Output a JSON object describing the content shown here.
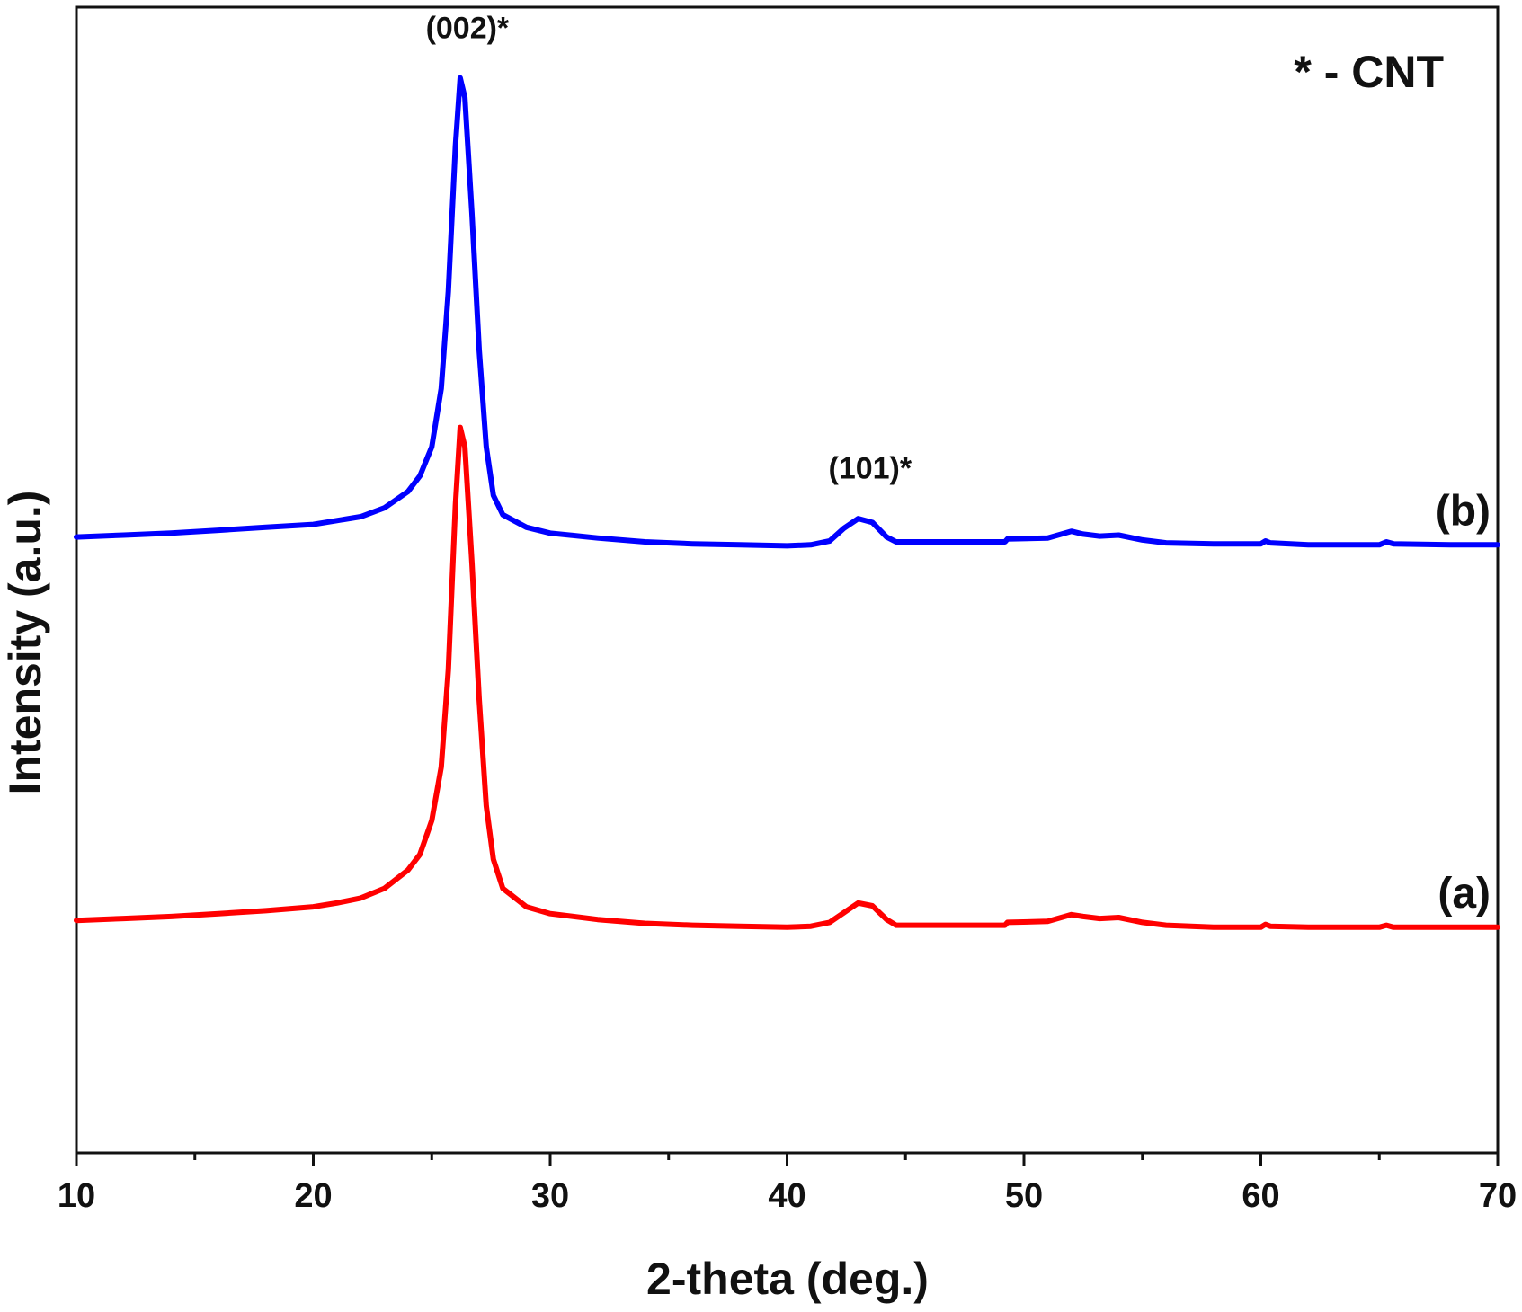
{
  "chart_data": {
    "type": "line",
    "xlabel": "2-theta (deg.)",
    "ylabel": "Intensity (a.u.)",
    "xlim": [
      10,
      70
    ],
    "ylim": [
      0,
      1
    ],
    "x_ticks": [
      10,
      20,
      30,
      40,
      50,
      60,
      70
    ],
    "y_ticks": [],
    "grid": false,
    "legend_note": "* - CNT",
    "annotations": [
      {
        "text": "(002)*",
        "x": 26.2
      },
      {
        "text": "(101)*",
        "x": 43.2
      }
    ],
    "series": [
      {
        "name": "(a)",
        "color": "#ff0000",
        "points": [
          [
            10,
            0.172
          ],
          [
            12,
            0.174
          ],
          [
            14,
            0.176
          ],
          [
            16,
            0.179
          ],
          [
            18,
            0.182
          ],
          [
            20,
            0.186
          ],
          [
            21,
            0.19
          ],
          [
            22,
            0.195
          ],
          [
            23,
            0.205
          ],
          [
            24,
            0.224
          ],
          [
            24.5,
            0.24
          ],
          [
            25,
            0.275
          ],
          [
            25.4,
            0.33
          ],
          [
            25.7,
            0.43
          ],
          [
            26.0,
            0.6
          ],
          [
            26.2,
            0.68
          ],
          [
            26.4,
            0.66
          ],
          [
            26.7,
            0.54
          ],
          [
            27.0,
            0.4
          ],
          [
            27.3,
            0.29
          ],
          [
            27.6,
            0.235
          ],
          [
            28.0,
            0.205
          ],
          [
            29,
            0.186
          ],
          [
            30,
            0.179
          ],
          [
            32,
            0.173
          ],
          [
            34,
            0.169
          ],
          [
            36,
            0.167
          ],
          [
            38,
            0.166
          ],
          [
            40,
            0.165
          ],
          [
            41,
            0.166
          ],
          [
            41.8,
            0.17
          ],
          [
            42.4,
            0.18
          ],
          [
            43.0,
            0.19
          ],
          [
            43.6,
            0.187
          ],
          [
            44.2,
            0.173
          ],
          [
            44.6,
            0.167
          ],
          [
            46,
            0.167
          ],
          [
            48,
            0.167
          ],
          [
            49.2,
            0.167
          ],
          [
            49.3,
            0.17
          ],
          [
            51,
            0.171
          ],
          [
            52.0,
            0.178
          ],
          [
            52.5,
            0.176
          ],
          [
            53.2,
            0.174
          ],
          [
            54.0,
            0.175
          ],
          [
            55,
            0.17
          ],
          [
            56,
            0.167
          ],
          [
            58,
            0.165
          ],
          [
            60,
            0.165
          ],
          [
            60.2,
            0.168
          ],
          [
            60.4,
            0.166
          ],
          [
            62,
            0.165
          ],
          [
            65,
            0.165
          ],
          [
            65.3,
            0.167
          ],
          [
            65.6,
            0.165
          ],
          [
            68,
            0.165
          ],
          [
            70,
            0.165
          ]
        ]
      },
      {
        "name": "(b)",
        "color": "#0000ff",
        "points": [
          [
            10,
            0.567
          ],
          [
            12,
            0.569
          ],
          [
            14,
            0.571
          ],
          [
            16,
            0.574
          ],
          [
            18,
            0.577
          ],
          [
            20,
            0.58
          ],
          [
            21,
            0.584
          ],
          [
            22,
            0.588
          ],
          [
            23,
            0.597
          ],
          [
            24,
            0.614
          ],
          [
            24.5,
            0.63
          ],
          [
            25,
            0.66
          ],
          [
            25.4,
            0.72
          ],
          [
            25.7,
            0.82
          ],
          [
            26.0,
            0.97
          ],
          [
            26.2,
            1.04
          ],
          [
            26.4,
            1.02
          ],
          [
            26.7,
            0.9
          ],
          [
            27.0,
            0.76
          ],
          [
            27.3,
            0.66
          ],
          [
            27.6,
            0.61
          ],
          [
            28.0,
            0.59
          ],
          [
            29,
            0.577
          ],
          [
            30,
            0.571
          ],
          [
            32,
            0.566
          ],
          [
            34,
            0.562
          ],
          [
            36,
            0.56
          ],
          [
            38,
            0.559
          ],
          [
            40,
            0.558
          ],
          [
            41,
            0.559
          ],
          [
            41.8,
            0.563
          ],
          [
            42.4,
            0.576
          ],
          [
            43.0,
            0.586
          ],
          [
            43.6,
            0.582
          ],
          [
            44.2,
            0.567
          ],
          [
            44.6,
            0.562
          ],
          [
            46,
            0.562
          ],
          [
            48,
            0.562
          ],
          [
            49.2,
            0.562
          ],
          [
            49.3,
            0.565
          ],
          [
            51,
            0.566
          ],
          [
            52.0,
            0.573
          ],
          [
            52.5,
            0.57
          ],
          [
            53.2,
            0.568
          ],
          [
            54.0,
            0.569
          ],
          [
            55,
            0.564
          ],
          [
            56,
            0.561
          ],
          [
            58,
            0.56
          ],
          [
            60,
            0.56
          ],
          [
            60.2,
            0.563
          ],
          [
            60.4,
            0.561
          ],
          [
            62,
            0.559
          ],
          [
            65,
            0.559
          ],
          [
            65.3,
            0.562
          ],
          [
            65.6,
            0.56
          ],
          [
            68,
            0.559
          ],
          [
            70,
            0.559
          ]
        ]
      }
    ]
  }
}
